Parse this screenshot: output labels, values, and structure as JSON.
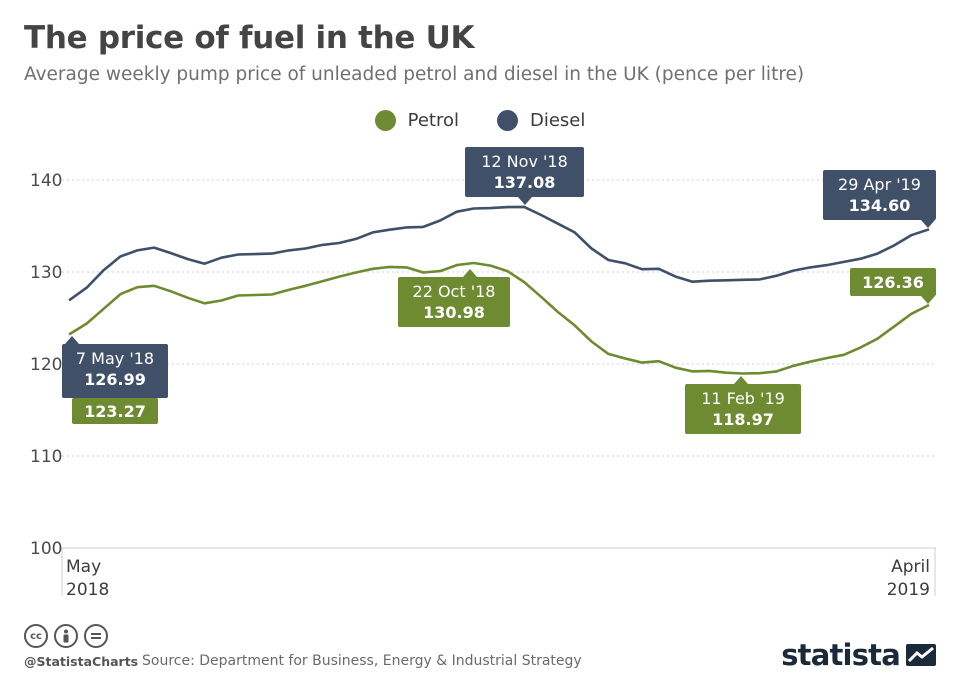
{
  "title": "The price of fuel in the UK",
  "subtitle": "Average weekly pump price of unleaded petrol and diesel in the UK (pence per litre)",
  "legend": [
    {
      "name": "Petrol",
      "color": "#6e8b31"
    },
    {
      "name": "Diesel",
      "color": "#3f5068"
    }
  ],
  "chart_data": {
    "type": "line",
    "title": "The price of fuel in the UK",
    "ylabel": "pence per litre",
    "ylim": [
      100,
      140
    ],
    "yticks": [
      100,
      110,
      120,
      130,
      140
    ],
    "x_labels": {
      "start": [
        "May",
        "2018"
      ],
      "end": [
        "April",
        "2019"
      ]
    },
    "grid": true,
    "series": [
      {
        "name": "Petrol",
        "color": "#6e8b31",
        "values": [
          123.27,
          124.4,
          126.0,
          127.6,
          128.35,
          128.5,
          127.9,
          127.2,
          126.6,
          126.9,
          127.45,
          127.5,
          127.55,
          128.05,
          128.5,
          129.0,
          129.5,
          129.95,
          130.35,
          130.55,
          130.5,
          129.95,
          130.1,
          130.75,
          130.98,
          130.7,
          130.1,
          128.9,
          127.3,
          125.65,
          124.2,
          122.45,
          121.1,
          120.6,
          120.15,
          120.3,
          119.6,
          119.2,
          119.25,
          119.05,
          118.97,
          119.0,
          119.2,
          119.8,
          120.25,
          120.65,
          121.0,
          121.8,
          122.75,
          124.1,
          125.45,
          126.36
        ]
      },
      {
        "name": "Diesel",
        "color": "#3f5068",
        "values": [
          126.99,
          128.3,
          130.2,
          131.7,
          132.35,
          132.65,
          132.05,
          131.4,
          130.9,
          131.55,
          131.9,
          131.95,
          132.0,
          132.35,
          132.55,
          132.95,
          133.15,
          133.6,
          134.3,
          134.6,
          134.85,
          134.9,
          135.6,
          136.55,
          136.9,
          136.95,
          137.05,
          137.08,
          136.2,
          135.25,
          134.3,
          132.55,
          131.3,
          130.95,
          130.3,
          130.35,
          129.5,
          128.95,
          129.05,
          129.1,
          129.15,
          129.2,
          129.6,
          130.15,
          130.5,
          130.75,
          131.1,
          131.45,
          132.0,
          132.9,
          134.0,
          134.6
        ]
      }
    ],
    "annotations": [
      {
        "series": "Diesel",
        "date": "7 May '18",
        "value": "126.99"
      },
      {
        "series": "Petrol",
        "date": "",
        "value": "123.27"
      },
      {
        "series": "Diesel",
        "date": "12 Nov '18",
        "value": "137.08"
      },
      {
        "series": "Petrol",
        "date": "22 Oct '18",
        "value": "130.98"
      },
      {
        "series": "Petrol",
        "date": "11 Feb '19",
        "value": "118.97"
      },
      {
        "series": "Diesel",
        "date": "29 Apr '19",
        "value": "134.60"
      },
      {
        "series": "Petrol",
        "date": "",
        "value": "126.36"
      }
    ]
  },
  "footer": {
    "handle": "@StatistaCharts",
    "source": "Source: Department for Business, Energy & Industrial Strategy",
    "brand": "statista"
  }
}
